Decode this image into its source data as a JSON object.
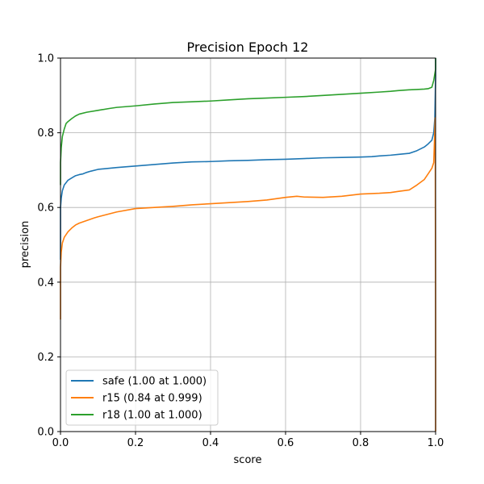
{
  "chart_data": {
    "type": "line",
    "title": "Precision Epoch 12",
    "xlabel": "score",
    "ylabel": "precision",
    "xlim": [
      0,
      1
    ],
    "ylim": [
      0,
      1
    ],
    "grid": true,
    "legend_position": "lower-left",
    "xticks": [
      "0.0",
      "0.2",
      "0.4",
      "0.6",
      "0.8",
      "1.0"
    ],
    "yticks": [
      "0.0",
      "0.2",
      "0.4",
      "0.6",
      "0.8",
      "1.0"
    ],
    "series": [
      {
        "name": "safe",
        "label": "safe (1.00 at 1.000)",
        "color": "#1f77b4",
        "x": [
          0.0,
          0.0,
          0.002,
          0.005,
          0.01,
          0.02,
          0.03,
          0.04,
          0.05,
          0.06,
          0.07,
          0.08,
          0.1,
          0.15,
          0.2,
          0.25,
          0.3,
          0.35,
          0.4,
          0.45,
          0.5,
          0.55,
          0.6,
          0.65,
          0.7,
          0.75,
          0.8,
          0.83,
          0.85,
          0.88,
          0.9,
          0.93,
          0.95,
          0.97,
          0.98,
          0.99,
          0.995,
          0.998,
          1.0,
          1.0
        ],
        "y": [
          0.46,
          0.6,
          0.625,
          0.645,
          0.66,
          0.673,
          0.679,
          0.685,
          0.688,
          0.69,
          0.694,
          0.697,
          0.702,
          0.707,
          0.711,
          0.715,
          0.719,
          0.722,
          0.723,
          0.725,
          0.726,
          0.728,
          0.729,
          0.731,
          0.733,
          0.734,
          0.735,
          0.736,
          0.738,
          0.74,
          0.742,
          0.745,
          0.752,
          0.762,
          0.77,
          0.78,
          0.8,
          0.84,
          0.95,
          1.0
        ]
      },
      {
        "name": "r15",
        "label": "r15 (0.84 at 0.999)",
        "color": "#ff7f0e",
        "x": [
          0.0,
          0.0,
          0.002,
          0.005,
          0.01,
          0.02,
          0.03,
          0.04,
          0.05,
          0.07,
          0.09,
          0.1,
          0.15,
          0.2,
          0.25,
          0.3,
          0.35,
          0.4,
          0.45,
          0.5,
          0.55,
          0.6,
          0.63,
          0.65,
          0.7,
          0.75,
          0.8,
          0.85,
          0.88,
          0.9,
          0.93,
          0.95,
          0.97,
          0.98,
          0.99,
          0.995,
          0.999,
          1.0,
          1.0
        ],
        "y": [
          0.3,
          0.44,
          0.48,
          0.505,
          0.52,
          0.535,
          0.545,
          0.553,
          0.558,
          0.565,
          0.572,
          0.575,
          0.588,
          0.597,
          0.6,
          0.603,
          0.607,
          0.61,
          0.613,
          0.616,
          0.62,
          0.627,
          0.63,
          0.628,
          0.627,
          0.63,
          0.636,
          0.638,
          0.64,
          0.643,
          0.647,
          0.66,
          0.675,
          0.69,
          0.705,
          0.72,
          0.84,
          0.3,
          0.0
        ]
      },
      {
        "name": "r18",
        "label": "r18 (1.00 at 1.000)",
        "color": "#2ca02c",
        "x": [
          0.0,
          0.0,
          0.002,
          0.005,
          0.01,
          0.015,
          0.02,
          0.03,
          0.04,
          0.05,
          0.07,
          0.1,
          0.13,
          0.15,
          0.2,
          0.25,
          0.3,
          0.35,
          0.4,
          0.45,
          0.5,
          0.55,
          0.6,
          0.65,
          0.7,
          0.75,
          0.8,
          0.85,
          0.88,
          0.9,
          0.93,
          0.95,
          0.97,
          0.98,
          0.99,
          0.995,
          1.0,
          1.0
        ],
        "y": [
          0.66,
          0.72,
          0.76,
          0.79,
          0.81,
          0.825,
          0.83,
          0.838,
          0.845,
          0.85,
          0.855,
          0.86,
          0.865,
          0.868,
          0.872,
          0.877,
          0.881,
          0.883,
          0.885,
          0.888,
          0.891,
          0.893,
          0.895,
          0.897,
          0.9,
          0.903,
          0.906,
          0.909,
          0.911,
          0.913,
          0.915,
          0.916,
          0.917,
          0.918,
          0.922,
          0.94,
          0.97,
          1.0
        ]
      }
    ]
  }
}
